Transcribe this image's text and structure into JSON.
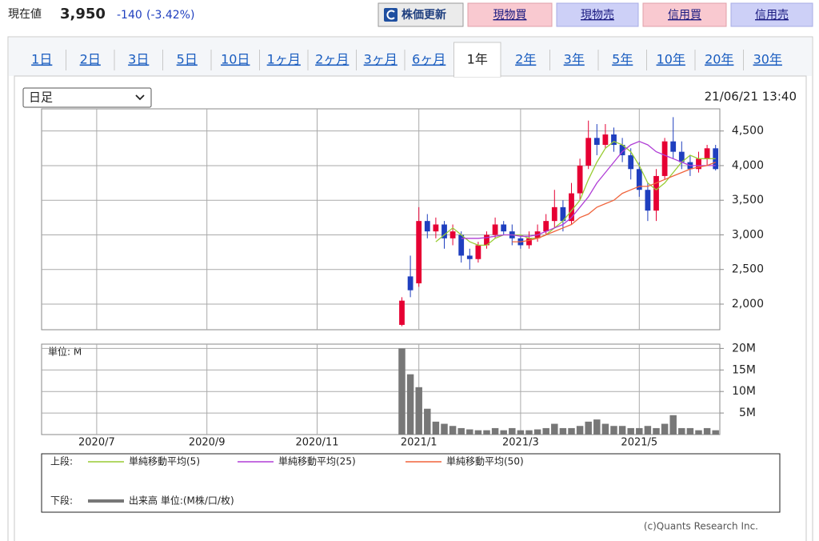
{
  "header": {
    "label": "現在値",
    "price": "3,950",
    "change": "-140",
    "change_pct": "(-3.42%)"
  },
  "buttons": [
    "株価更新",
    "現物買",
    "現物売",
    "信用買",
    "信用売"
  ],
  "tabs": [
    {
      "label": "1日",
      "active": false
    },
    {
      "label": "2日",
      "active": false
    },
    {
      "label": "3日",
      "active": false
    },
    {
      "label": "5日",
      "active": false
    },
    {
      "label": "10日",
      "active": false
    },
    {
      "label": "1ヶ月",
      "active": false
    },
    {
      "label": "2ヶ月",
      "active": false
    },
    {
      "label": "3ヶ月",
      "active": false
    },
    {
      "label": "6ヶ月",
      "active": false
    },
    {
      "label": "1年",
      "active": true
    },
    {
      "label": "2年",
      "active": false
    },
    {
      "label": "3年",
      "active": false
    },
    {
      "label": "5年",
      "active": false
    },
    {
      "label": "10年",
      "active": false
    },
    {
      "label": "20年",
      "active": false
    },
    {
      "label": "30年",
      "active": false
    }
  ],
  "select": "日足",
  "timestamp": "21/06/21 13:40",
  "credit": "(c)Quants Research Inc.",
  "chart_data": {
    "type": "candlestick",
    "categories": [
      null,
      null,
      null,
      null,
      null,
      null,
      "2020/7",
      null,
      null,
      null,
      null,
      null,
      null,
      null,
      null,
      null,
      null,
      null,
      null,
      "2020/9",
      null,
      null,
      null,
      null,
      null,
      null,
      null,
      null,
      null,
      null,
      null,
      null,
      "2020/11",
      null,
      null,
      null,
      null,
      null,
      null,
      null,
      null,
      null,
      null,
      null,
      "2021/1",
      null,
      null,
      null,
      null,
      null,
      null,
      null,
      null,
      null,
      null,
      null,
      "2021/3",
      null,
      null,
      null,
      null,
      null,
      null,
      null,
      null,
      null,
      null,
      null,
      null,
      null,
      "2021/5",
      null,
      null,
      null,
      null,
      null,
      null,
      null,
      null,
      null
    ],
    "open": [
      null,
      null,
      null,
      null,
      null,
      null,
      null,
      null,
      null,
      null,
      null,
      null,
      null,
      null,
      null,
      null,
      null,
      null,
      null,
      null,
      null,
      null,
      null,
      null,
      null,
      null,
      null,
      null,
      null,
      null,
      null,
      null,
      null,
      null,
      null,
      null,
      null,
      null,
      null,
      null,
      null,
      null,
      1700,
      2400,
      2300,
      3200,
      3050,
      3150,
      2950,
      3000,
      2700,
      2650,
      2850,
      3000,
      3150,
      3050,
      2950,
      2850,
      2950,
      3050,
      3200,
      3400,
      3200,
      3600,
      4000,
      4400,
      4300,
      4450,
      4300,
      4150,
      3950,
      3650,
      3350,
      3850,
      4350,
      4200,
      4050,
      3950,
      4100,
      4250
    ],
    "high": [
      null,
      null,
      null,
      null,
      null,
      null,
      null,
      null,
      null,
      null,
      null,
      null,
      null,
      null,
      null,
      null,
      null,
      null,
      null,
      null,
      null,
      null,
      null,
      null,
      null,
      null,
      null,
      null,
      null,
      null,
      null,
      null,
      null,
      null,
      null,
      null,
      null,
      null,
      null,
      null,
      null,
      null,
      2100,
      2700,
      3400,
      3300,
      3250,
      3200,
      3150,
      3050,
      2800,
      2900,
      3050,
      3250,
      3200,
      3150,
      3000,
      3050,
      3150,
      3300,
      3650,
      3500,
      3750,
      4100,
      4650,
      4600,
      4600,
      4550,
      4400,
      4250,
      4050,
      3750,
      3950,
      4400,
      4700,
      4350,
      4150,
      4200,
      4300,
      4300
    ],
    "low": [
      null,
      null,
      null,
      null,
      null,
      null,
      null,
      null,
      null,
      null,
      null,
      null,
      null,
      null,
      null,
      null,
      null,
      null,
      null,
      null,
      null,
      null,
      null,
      null,
      null,
      null,
      null,
      null,
      null,
      null,
      null,
      null,
      null,
      null,
      null,
      null,
      null,
      null,
      null,
      null,
      null,
      null,
      1680,
      2100,
      2250,
      2950,
      2950,
      2800,
      2850,
      2600,
      2500,
      2600,
      2800,
      2950,
      3000,
      2850,
      2800,
      2800,
      2900,
      3000,
      3100,
      3050,
      3150,
      3500,
      3950,
      4150,
      4250,
      4200,
      4050,
      3800,
      3550,
      3200,
      3200,
      3800,
      4100,
      3950,
      3850,
      3900,
      4000,
      3930
    ],
    "close": [
      null,
      null,
      null,
      null,
      null,
      null,
      null,
      null,
      null,
      null,
      null,
      null,
      null,
      null,
      null,
      null,
      null,
      null,
      null,
      null,
      null,
      null,
      null,
      null,
      null,
      null,
      null,
      null,
      null,
      null,
      null,
      null,
      null,
      null,
      null,
      null,
      null,
      null,
      null,
      null,
      null,
      null,
      2050,
      2200,
      3200,
      3050,
      3150,
      2950,
      3050,
      2700,
      2650,
      2850,
      3000,
      3150,
      3050,
      2950,
      2850,
      2950,
      3050,
      3200,
      3400,
      3200,
      3600,
      4000,
      4400,
      4300,
      4450,
      4300,
      4150,
      3950,
      3650,
      3350,
      3850,
      4350,
      4200,
      4050,
      3950,
      4100,
      4250,
      3950
    ],
    "up_color": "#e60033",
    "down_color": "#1f3fbf",
    "ylim": [
      1630,
      4820
    ],
    "yticks": [
      {
        "value": 2000,
        "label": "2,000"
      },
      {
        "value": 2500,
        "label": "2,500"
      },
      {
        "value": 3000,
        "label": "3,000"
      },
      {
        "value": 3500,
        "label": "3,500"
      },
      {
        "value": 4000,
        "label": "4,000"
      },
      {
        "value": 4500,
        "label": "4,500"
      }
    ],
    "grid": true,
    "legend_upper_label": "上段:",
    "moving_averages": [
      {
        "name": "単純移動平均(5)",
        "color": "#99cc33",
        "values": [
          null,
          null,
          null,
          null,
          null,
          null,
          null,
          null,
          null,
          null,
          null,
          null,
          null,
          null,
          null,
          null,
          null,
          null,
          null,
          null,
          null,
          null,
          null,
          null,
          null,
          null,
          null,
          null,
          null,
          null,
          null,
          null,
          null,
          null,
          null,
          null,
          null,
          null,
          null,
          null,
          null,
          null,
          null,
          null,
          null,
          null,
          2900,
          3000,
          3100,
          3000,
          2900,
          2850,
          2850,
          2950,
          3000,
          3000,
          3000,
          2950,
          2950,
          3000,
          3100,
          3200,
          3350,
          3500,
          3800,
          4050,
          4250,
          4350,
          4300,
          4200,
          4000,
          3750,
          3650,
          3750,
          3900,
          4050,
          4150,
          4100,
          4100,
          4100
        ]
      },
      {
        "name": "単純移動平均(25)",
        "color": "#b03ed6",
        "values": [
          null,
          null,
          null,
          null,
          null,
          null,
          null,
          null,
          null,
          null,
          null,
          null,
          null,
          null,
          null,
          null,
          null,
          null,
          null,
          null,
          null,
          null,
          null,
          null,
          null,
          null,
          null,
          null,
          null,
          null,
          null,
          null,
          null,
          null,
          null,
          null,
          null,
          null,
          null,
          null,
          null,
          null,
          null,
          null,
          null,
          null,
          null,
          null,
          null,
          2950,
          2950,
          2950,
          2960,
          2980,
          3000,
          3000,
          2980,
          2980,
          3000,
          3050,
          3100,
          3150,
          3250,
          3400,
          3550,
          3750,
          3900,
          4050,
          4200,
          4300,
          4350,
          4300,
          4200,
          4150,
          4100,
          4050,
          4000,
          4000,
          4000,
          4000
        ]
      },
      {
        "name": "単純移動平均(50)",
        "color": "#f0643c",
        "values": [
          null,
          null,
          null,
          null,
          null,
          null,
          null,
          null,
          null,
          null,
          null,
          null,
          null,
          null,
          null,
          null,
          null,
          null,
          null,
          null,
          null,
          null,
          null,
          null,
          null,
          null,
          null,
          null,
          null,
          null,
          null,
          null,
          null,
          null,
          null,
          null,
          null,
          null,
          null,
          null,
          null,
          null,
          null,
          null,
          null,
          null,
          null,
          null,
          null,
          null,
          null,
          null,
          null,
          null,
          null,
          2900,
          2900,
          2920,
          2950,
          3000,
          3050,
          3100,
          3150,
          3250,
          3300,
          3400,
          3450,
          3500,
          3600,
          3650,
          3700,
          3700,
          3750,
          3800,
          3850,
          3900,
          3950,
          3980,
          4000,
          4050
        ]
      }
    ],
    "volume": {
      "legend_label": "下段:",
      "name": "出来高 単位:(M株/口/枚)",
      "unit_label": "単位: M",
      "color": "#777777",
      "values": [
        null,
        null,
        null,
        null,
        null,
        null,
        null,
        null,
        null,
        null,
        null,
        null,
        null,
        null,
        null,
        null,
        null,
        null,
        null,
        null,
        null,
        null,
        null,
        null,
        null,
        null,
        null,
        null,
        null,
        null,
        null,
        null,
        null,
        null,
        null,
        null,
        null,
        null,
        null,
        null,
        null,
        null,
        20,
        14,
        11,
        6,
        3,
        2.5,
        2,
        1.5,
        1.2,
        1,
        1,
        1.5,
        1,
        1.5,
        1,
        1,
        1.2,
        1.5,
        2.5,
        1.5,
        1.5,
        2,
        3,
        3.5,
        2.5,
        2,
        2,
        1.5,
        1.5,
        2,
        1.5,
        2.5,
        4.5,
        1.5,
        1.5,
        1,
        1.5,
        1
      ],
      "ylim": [
        0,
        21
      ],
      "yticks": [
        {
          "value": 5,
          "label": "5M"
        },
        {
          "value": 10,
          "label": "10M"
        },
        {
          "value": 15,
          "label": "15M"
        },
        {
          "value": 20,
          "label": "20M"
        }
      ]
    }
  }
}
